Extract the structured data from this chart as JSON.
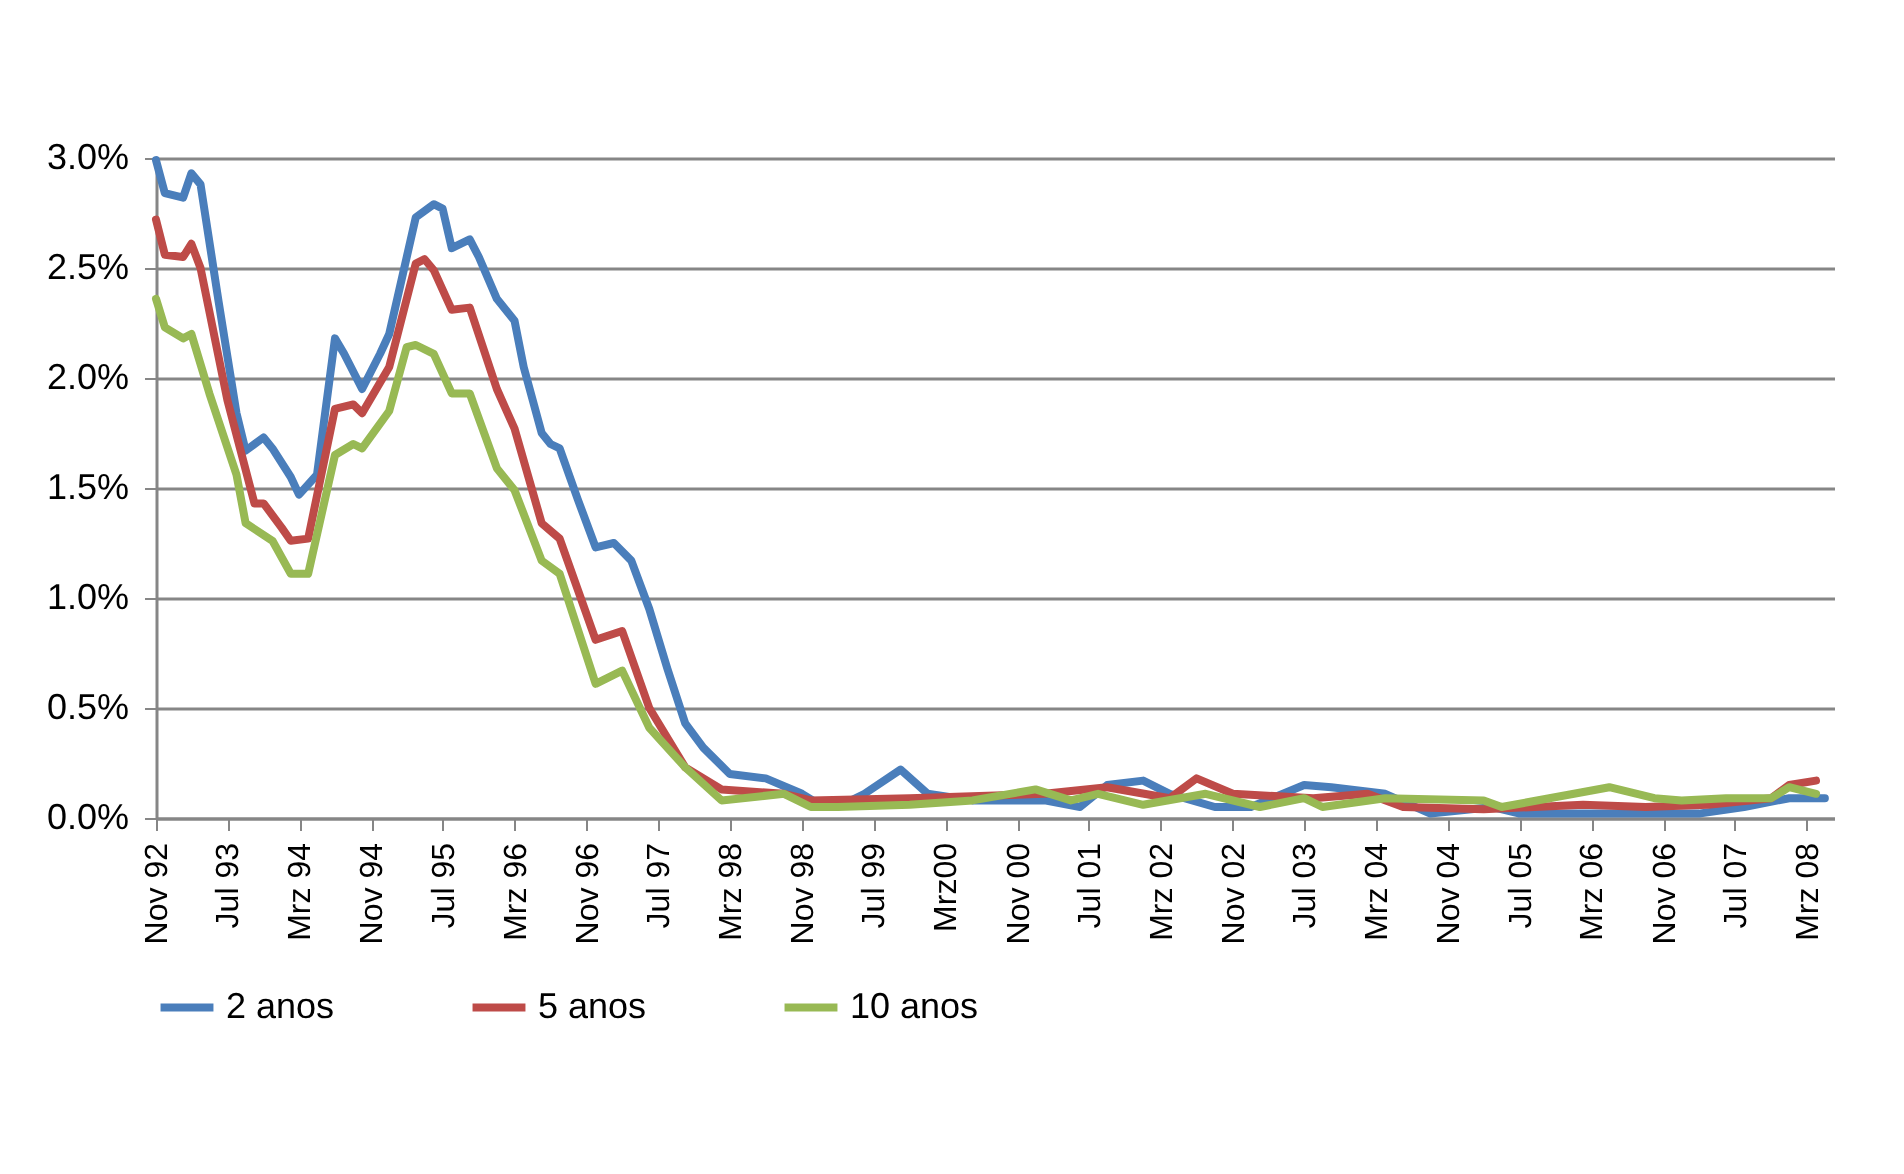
{
  "chart_data": {
    "type": "line",
    "xlim": [
      "1992-11",
      "2008-06"
    ],
    "xticks": [
      {
        "value": "1992-11",
        "label": "Nov 92"
      },
      {
        "value": "1993-07",
        "label": "Jul 93"
      },
      {
        "value": "1994-03",
        "label": "Mrz 94"
      },
      {
        "value": "1994-11",
        "label": "Nov 94"
      },
      {
        "value": "1995-07",
        "label": "Jul 95"
      },
      {
        "value": "1996-03",
        "label": "Mrz 96"
      },
      {
        "value": "1996-11",
        "label": "Nov 96"
      },
      {
        "value": "1997-07",
        "label": "Jul 97"
      },
      {
        "value": "1998-03",
        "label": "Mrz 98"
      },
      {
        "value": "1998-11",
        "label": "Nov 98"
      },
      {
        "value": "1999-07",
        "label": "Jul 99"
      },
      {
        "value": "2000-03",
        "label": "Mrz00"
      },
      {
        "value": "2000-11",
        "label": "Nov 00"
      },
      {
        "value": "2001-07",
        "label": "Jul 01"
      },
      {
        "value": "2002-03",
        "label": "Mrz 02"
      },
      {
        "value": "2002-11",
        "label": "Nov 02"
      },
      {
        "value": "2003-07",
        "label": "Jul 03"
      },
      {
        "value": "2004-03",
        "label": "Mrz 04"
      },
      {
        "value": "2004-11",
        "label": "Nov 04"
      },
      {
        "value": "2005-07",
        "label": "Jul 05"
      },
      {
        "value": "2006-03",
        "label": "Mrz 06"
      },
      {
        "value": "2006-11",
        "label": "Nov 06"
      },
      {
        "value": "2007-07",
        "label": "Jul 07"
      },
      {
        "value": "2008-03",
        "label": "Mrz 08"
      }
    ],
    "ylim": [
      0,
      3
    ],
    "yticks": [
      {
        "value": 0,
        "label": "0.0%"
      },
      {
        "value": 0.5,
        "label": "0.5%"
      },
      {
        "value": 1,
        "label": "1.0%"
      },
      {
        "value": 1.5,
        "label": "1.5%"
      },
      {
        "value": 2,
        "label": "2.0%"
      },
      {
        "value": 2.5,
        "label": "2.5%"
      },
      {
        "value": 3,
        "label": "3.0%"
      }
    ],
    "grid": "y",
    "legend": "bottom",
    "series": [
      {
        "name": "2 anos",
        "color": "#4a7ebb",
        "x": [
          "1992-11",
          "1992-12",
          "1993-02",
          "1993-03",
          "1993-04",
          "1993-06",
          "1993-08",
          "1993-09",
          "1993-11",
          "1993-12",
          "1994-02",
          "1994-03",
          "1994-05",
          "1994-07",
          "1994-08",
          "1994-10",
          "1994-12",
          "1995-01",
          "1995-04",
          "1995-06",
          "1995-07",
          "1995-08",
          "1995-10",
          "1995-11",
          "1996-01",
          "1996-03",
          "1996-04",
          "1996-06",
          "1996-07",
          "1996-08",
          "1996-10",
          "1996-12",
          "1997-02",
          "1997-04",
          "1997-06",
          "1997-08",
          "1997-10",
          "1997-12",
          "1998-03",
          "1998-07",
          "1998-11",
          "1999-01",
          "1999-03",
          "1999-06",
          "1999-10",
          "2000-01",
          "2000-06",
          "2001-02",
          "2001-06",
          "2001-09",
          "2002-01",
          "2002-04",
          "2002-09",
          "2003-01",
          "2003-07",
          "2003-10",
          "2004-04",
          "2004-09",
          "2005-04",
          "2005-07",
          "2006-05",
          "2007-03",
          "2007-08",
          "2008-01",
          "2008-05"
        ],
        "values": [
          2.99,
          2.84,
          2.82,
          2.93,
          2.88,
          2.35,
          1.84,
          1.67,
          1.73,
          1.68,
          1.55,
          1.47,
          1.56,
          2.18,
          2.11,
          1.95,
          2.11,
          2.2,
          2.73,
          2.79,
          2.77,
          2.59,
          2.63,
          2.55,
          2.36,
          2.26,
          2.05,
          1.75,
          1.7,
          1.68,
          1.45,
          1.23,
          1.25,
          1.17,
          0.95,
          0.68,
          0.43,
          0.32,
          0.2,
          0.18,
          0.11,
          0.06,
          0.05,
          0.11,
          0.22,
          0.11,
          0.08,
          0.08,
          0.05,
          0.15,
          0.17,
          0.11,
          0.05,
          0.05,
          0.15,
          0.14,
          0.11,
          0.02,
          0.05,
          0.02,
          0.02,
          0.02,
          0.05,
          0.09,
          0.09
        ]
      },
      {
        "name": "5 anos",
        "color": "#be4b48",
        "x": [
          "1992-11",
          "1992-12",
          "1993-02",
          "1993-03",
          "1993-04",
          "1993-07",
          "1993-10",
          "1993-11",
          "1994-01",
          "1994-02",
          "1994-04",
          "1994-07",
          "1994-09",
          "1994-10",
          "1995-01",
          "1995-04",
          "1995-05",
          "1995-06",
          "1995-08",
          "1995-10",
          "1996-01",
          "1996-03",
          "1996-06",
          "1996-08",
          "1996-12",
          "1997-03",
          "1997-06",
          "1997-10",
          "1998-02",
          "1998-09",
          "1998-12",
          "1999-11",
          "2001-02",
          "2001-09",
          "2002-04",
          "2002-07",
          "2002-11",
          "2003-08",
          "2004-02",
          "2004-06",
          "2005-03",
          "2006-02",
          "2006-09",
          "2007-04",
          "2007-11",
          "2008-01",
          "2008-04"
        ],
        "values": [
          2.72,
          2.56,
          2.55,
          2.61,
          2.5,
          1.9,
          1.43,
          1.43,
          1.32,
          1.26,
          1.27,
          1.86,
          1.88,
          1.84,
          2.05,
          2.52,
          2.54,
          2.49,
          2.31,
          2.32,
          1.95,
          1.77,
          1.34,
          1.27,
          0.81,
          0.85,
          0.5,
          0.23,
          0.13,
          0.11,
          0.08,
          0.09,
          0.11,
          0.14,
          0.09,
          0.18,
          0.11,
          0.09,
          0.11,
          0.05,
          0.04,
          0.06,
          0.05,
          0.06,
          0.09,
          0.15,
          0.17
        ]
      },
      {
        "name": "10 anos",
        "color": "#98b954",
        "x": [
          "1992-11",
          "1992-12",
          "1993-02",
          "1993-03",
          "1993-05",
          "1993-08",
          "1993-09",
          "1993-12",
          "1994-02",
          "1994-04",
          "1994-07",
          "1994-09",
          "1994-10",
          "1995-01",
          "1995-03",
          "1995-04",
          "1995-06",
          "1995-08",
          "1995-10",
          "1996-01",
          "1996-03",
          "1996-06",
          "1996-08",
          "1996-12",
          "1997-03",
          "1997-06",
          "1997-10",
          "1998-02",
          "1998-09",
          "1998-12",
          "1999-03",
          "1999-11",
          "2000-06",
          "2001-01",
          "2001-05",
          "2001-08",
          "2002-01",
          "2002-08",
          "2003-02",
          "2003-07",
          "2003-09",
          "2004-04",
          "2005-03",
          "2005-05",
          "2006-01",
          "2006-05",
          "2006-10",
          "2007-01",
          "2007-06",
          "2007-11",
          "2008-01",
          "2008-04"
        ],
        "values": [
          2.36,
          2.23,
          2.18,
          2.2,
          1.93,
          1.56,
          1.34,
          1.26,
          1.11,
          1.11,
          1.65,
          1.7,
          1.68,
          1.85,
          2.14,
          2.15,
          2.11,
          1.93,
          1.93,
          1.59,
          1.49,
          1.17,
          1.11,
          0.61,
          0.67,
          0.41,
          0.23,
          0.08,
          0.11,
          0.05,
          0.05,
          0.06,
          0.08,
          0.13,
          0.08,
          0.11,
          0.06,
          0.11,
          0.05,
          0.09,
          0.05,
          0.09,
          0.08,
          0.05,
          0.11,
          0.14,
          0.09,
          0.08,
          0.09,
          0.09,
          0.14,
          0.11
        ]
      }
    ]
  }
}
